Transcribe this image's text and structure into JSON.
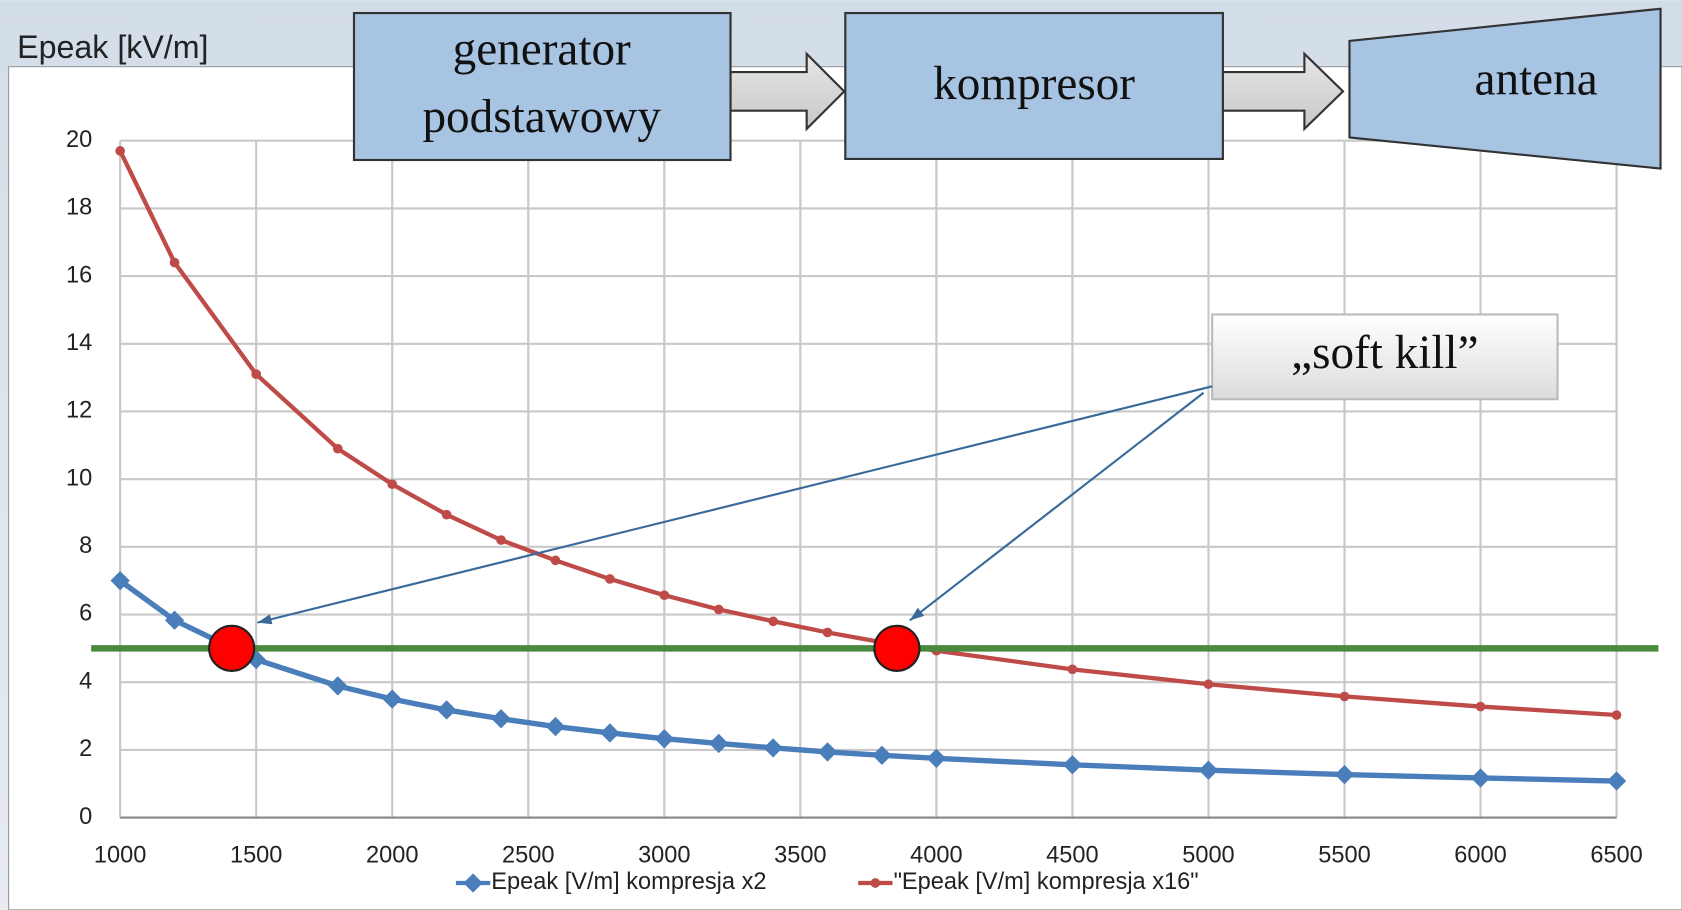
{
  "chart_data": {
    "type": "line",
    "y_label": "Epeak [kV/m]",
    "x": [
      1000,
      1200,
      1500,
      1800,
      2000,
      2200,
      2400,
      2600,
      2800,
      3000,
      3200,
      3400,
      3600,
      3800,
      4000,
      4500,
      5000,
      5500,
      6000,
      6500
    ],
    "series": [
      {
        "name": "Epeak [V/m] kompresja x2",
        "color": "#4a7ebb",
        "marker": "diamond",
        "values": [
          7.0,
          5.83,
          4.67,
          3.89,
          3.5,
          3.18,
          2.92,
          2.69,
          2.5,
          2.33,
          2.19,
          2.06,
          1.94,
          1.84,
          1.75,
          1.56,
          1.4,
          1.27,
          1.17,
          1.08
        ]
      },
      {
        "name": "\"Epeak [V/m] kompresja x16\"",
        "color": "#be4b48",
        "marker": "circle",
        "values": [
          19.7,
          16.4,
          13.1,
          10.9,
          9.85,
          8.95,
          8.2,
          7.6,
          7.05,
          6.57,
          6.15,
          5.8,
          5.47,
          5.18,
          4.93,
          4.38,
          3.94,
          3.58,
          3.28,
          3.03
        ]
      }
    ],
    "xlim": [
      1000,
      6500
    ],
    "ylim": [
      0,
      20
    ],
    "xticks": [
      1000,
      1500,
      2000,
      2500,
      3000,
      3500,
      4000,
      4500,
      5000,
      5500,
      6000,
      6500
    ],
    "yticks": [
      0,
      2,
      4,
      6,
      8,
      10,
      12,
      14,
      16,
      18,
      20
    ],
    "grid": true,
    "legend": "bottom",
    "threshold": {
      "value": 5,
      "color": "#4a8a3f"
    },
    "highlights": {
      "x": [
        1410,
        3855
      ],
      "y": [
        5,
        5
      ],
      "color": "#ff0000"
    },
    "annotation": "„soft kill”"
  },
  "diagram": {
    "blocks": [
      {
        "lines": [
          "generator",
          "podstawowy"
        ]
      },
      {
        "lines": [
          "kompresor"
        ]
      },
      {
        "lines": [
          "antena"
        ]
      }
    ]
  }
}
